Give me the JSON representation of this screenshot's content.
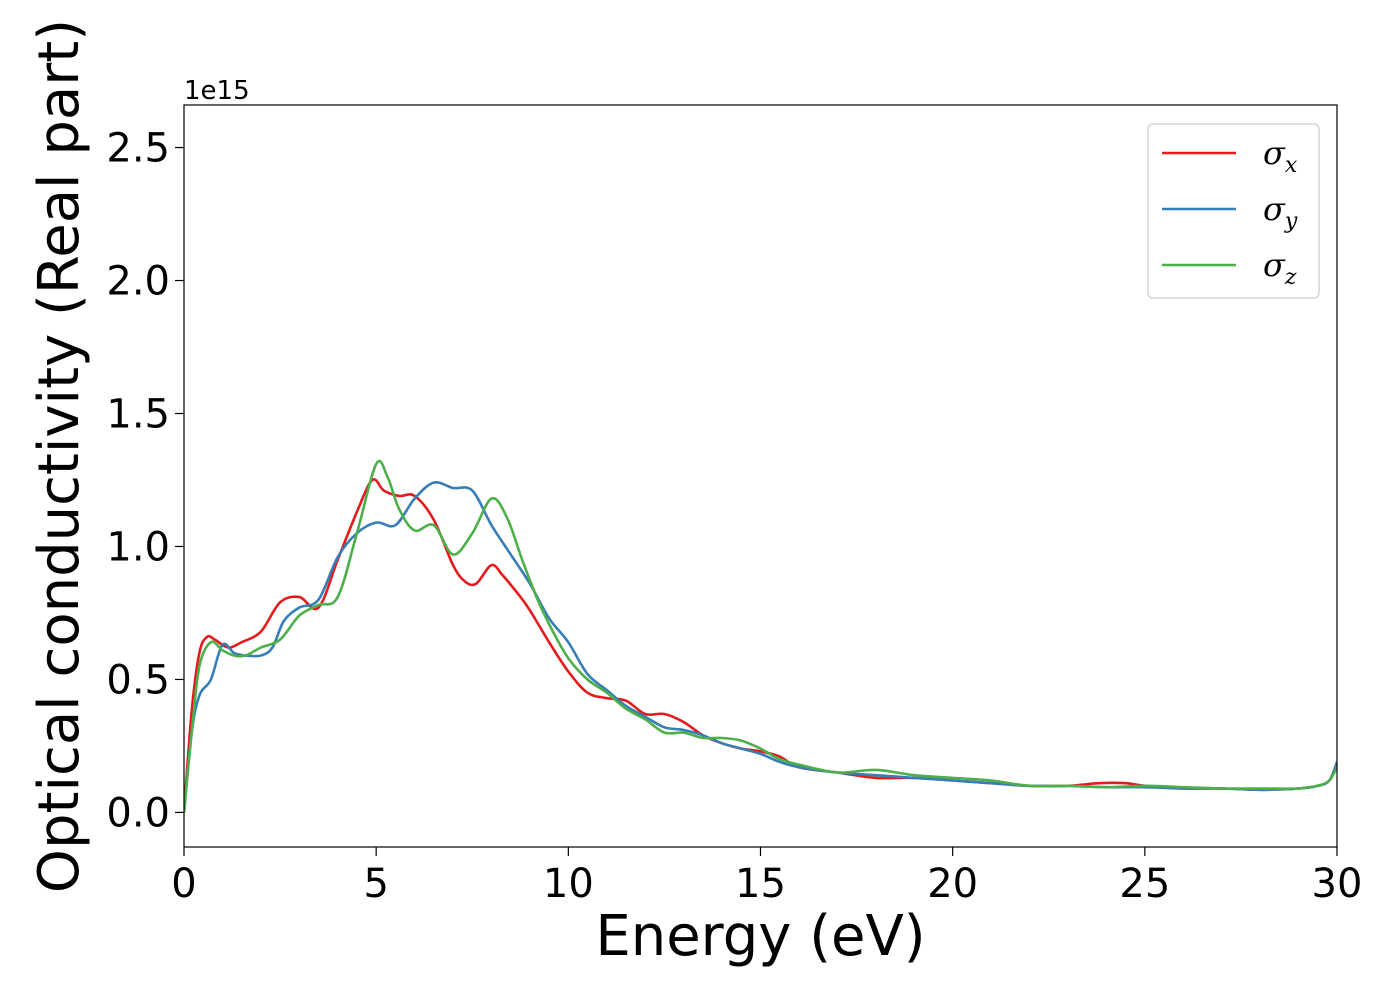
{
  "chart_data": {
    "type": "line",
    "title": "",
    "xlabel": "Energy (eV)",
    "ylabel": "Optical conductivity (Real part)",
    "y_offset_label": "1e15",
    "xlim": [
      0,
      30
    ],
    "ylim": [
      -0.13,
      2.66
    ],
    "xticks": [
      0,
      5,
      10,
      15,
      20,
      25,
      30
    ],
    "xtick_labels": [
      "0",
      "5",
      "10",
      "15",
      "20",
      "25",
      "30"
    ],
    "yticks": [
      0.0,
      0.5,
      1.0,
      1.5,
      2.0,
      2.5
    ],
    "ytick_labels": [
      "0.0",
      "0.5",
      "1.0",
      "1.5",
      "2.0",
      "2.5"
    ],
    "grid": false,
    "legend_position": "top-right",
    "series": [
      {
        "name": "σx",
        "legend_symbol": "σ",
        "legend_subscript": "x",
        "color": "#e41a1c",
        "x": [
          0,
          0.2,
          0.4,
          0.6,
          0.8,
          1.0,
          1.2,
          1.5,
          2.0,
          2.5,
          3.0,
          3.5,
          4.0,
          4.5,
          4.9,
          5.2,
          5.6,
          6.0,
          6.5,
          7.0,
          7.3,
          7.6,
          8.0,
          8.3,
          8.7,
          9.0,
          9.5,
          10.0,
          10.5,
          11.0,
          11.5,
          12.0,
          12.5,
          13.0,
          13.5,
          14.0,
          14.5,
          15.0,
          15.5,
          16.0,
          17.0,
          18.0,
          19.0,
          20.0,
          21.0,
          22.0,
          23.0,
          23.8,
          24.5,
          25.0,
          26.0,
          27.0,
          28.0,
          29.0,
          29.5,
          29.8,
          30.0
        ],
        "y": [
          0.0,
          0.38,
          0.6,
          0.66,
          0.65,
          0.63,
          0.62,
          0.64,
          0.68,
          0.79,
          0.81,
          0.77,
          0.95,
          1.13,
          1.25,
          1.21,
          1.19,
          1.19,
          1.1,
          0.93,
          0.87,
          0.86,
          0.93,
          0.89,
          0.82,
          0.76,
          0.64,
          0.53,
          0.45,
          0.43,
          0.42,
          0.37,
          0.37,
          0.34,
          0.29,
          0.26,
          0.24,
          0.23,
          0.21,
          0.17,
          0.15,
          0.13,
          0.13,
          0.12,
          0.11,
          0.1,
          0.1,
          0.11,
          0.11,
          0.1,
          0.09,
          0.09,
          0.085,
          0.09,
          0.1,
          0.12,
          0.18
        ]
      },
      {
        "name": "σy",
        "legend_symbol": "σ",
        "legend_subscript": "y",
        "color": "#377eb8",
        "x": [
          0,
          0.2,
          0.4,
          0.7,
          1.0,
          1.3,
          1.6,
          2.0,
          2.3,
          2.6,
          3.0,
          3.5,
          4.0,
          4.5,
          5.0,
          5.5,
          6.0,
          6.5,
          7.0,
          7.5,
          8.0,
          8.5,
          9.0,
          9.5,
          10.0,
          10.5,
          11.0,
          11.5,
          12.0,
          12.5,
          13.0,
          13.5,
          14.0,
          14.5,
          15.0,
          15.5,
          16.0,
          17.0,
          18.0,
          19.0,
          20.0,
          21.0,
          22.0,
          23.0,
          24.0,
          25.0,
          26.0,
          27.0,
          28.0,
          29.0,
          29.5,
          29.8,
          30.0
        ],
        "y": [
          0.0,
          0.3,
          0.44,
          0.5,
          0.63,
          0.6,
          0.59,
          0.59,
          0.62,
          0.72,
          0.77,
          0.8,
          0.96,
          1.05,
          1.09,
          1.08,
          1.18,
          1.24,
          1.22,
          1.21,
          1.08,
          0.97,
          0.86,
          0.73,
          0.64,
          0.52,
          0.46,
          0.4,
          0.36,
          0.32,
          0.31,
          0.29,
          0.26,
          0.24,
          0.22,
          0.19,
          0.17,
          0.15,
          0.14,
          0.13,
          0.12,
          0.11,
          0.1,
          0.1,
          0.095,
          0.095,
          0.09,
          0.09,
          0.085,
          0.09,
          0.1,
          0.12,
          0.19
        ]
      },
      {
        "name": "σz",
        "legend_symbol": "σ",
        "legend_subscript": "z",
        "color": "#4daf4a",
        "x": [
          0,
          0.2,
          0.4,
          0.7,
          1.0,
          1.3,
          1.6,
          2.0,
          2.5,
          3.0,
          3.5,
          4.0,
          4.5,
          5.0,
          5.3,
          5.6,
          6.0,
          6.5,
          7.0,
          7.5,
          8.0,
          8.4,
          8.8,
          9.2,
          9.6,
          10.0,
          10.5,
          11.0,
          11.5,
          12.0,
          12.5,
          13.0,
          13.5,
          14.0,
          14.5,
          15.0,
          15.5,
          16.0,
          17.0,
          18.0,
          19.0,
          20.0,
          21.0,
          22.0,
          23.0,
          24.0,
          25.0,
          26.0,
          27.0,
          28.0,
          29.0,
          29.5,
          29.8,
          30.0
        ],
        "y": [
          0.0,
          0.3,
          0.55,
          0.64,
          0.61,
          0.59,
          0.59,
          0.62,
          0.65,
          0.74,
          0.78,
          0.81,
          1.05,
          1.31,
          1.26,
          1.14,
          1.06,
          1.08,
          0.97,
          1.05,
          1.18,
          1.11,
          0.95,
          0.8,
          0.68,
          0.58,
          0.5,
          0.45,
          0.39,
          0.35,
          0.3,
          0.3,
          0.28,
          0.28,
          0.27,
          0.24,
          0.2,
          0.18,
          0.15,
          0.16,
          0.14,
          0.13,
          0.12,
          0.1,
          0.1,
          0.095,
          0.1,
          0.095,
          0.09,
          0.09,
          0.09,
          0.1,
          0.12,
          0.17
        ]
      }
    ]
  }
}
